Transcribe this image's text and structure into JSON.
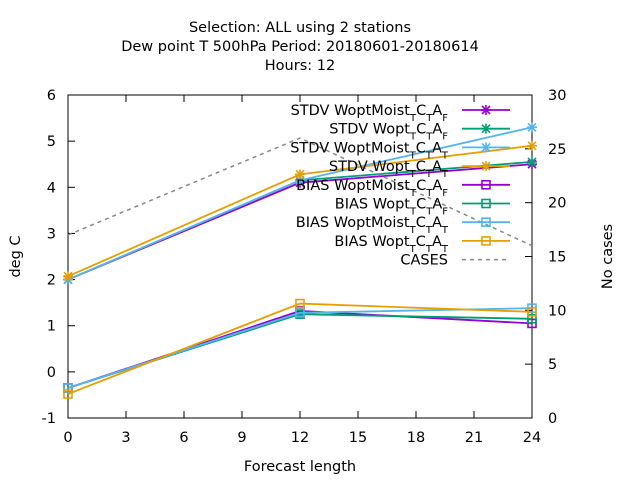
{
  "chart_data": {
    "type": "line",
    "title_lines": [
      "Selection: ALL using     2 stations",
      "Dew point T 500hPa   Period: 20180601-20180614",
      "Hours:  12"
    ],
    "xlabel": "Forecast length",
    "ylabel": "deg C",
    "y2label": "No cases",
    "xlim": [
      0,
      24
    ],
    "ylim": [
      -1,
      6
    ],
    "y2lim": [
      0,
      30
    ],
    "xticks": [
      0,
      3,
      6,
      9,
      12,
      15,
      18,
      21,
      24
    ],
    "yticks": [
      -1,
      0,
      1,
      2,
      3,
      4,
      5,
      6
    ],
    "y2ticks": [
      0,
      5,
      10,
      15,
      20,
      25,
      30
    ],
    "grid": false,
    "legend_position": "top-right",
    "x": [
      0,
      12,
      24
    ],
    "series": [
      {
        "name": "STDV WoptMoist_TSC_TSA_F",
        "legend": {
          "pre": "STDV WoptMoist",
          "parts": [
            [
              "T",
              "S"
            ],
            [
              "C",
              ""
            ],
            [
              "T",
              "S"
            ],
            [
              "A",
              ""
            ],
            [
              "F",
              "S"
            ]
          ]
        },
        "color": "#9400d3",
        "marker": "x-star",
        "axis": "y",
        "values": [
          2.0,
          4.1,
          4.5
        ]
      },
      {
        "name": "STDV Wopt_TSC_TSA_F",
        "legend": {
          "pre": "STDV Wopt",
          "parts": [
            [
              "T",
              "S"
            ],
            [
              "C",
              ""
            ],
            [
              "T",
              "S"
            ],
            [
              "A",
              ""
            ],
            [
              "F",
              "S"
            ]
          ]
        },
        "color": "#009e73",
        "marker": "x-star",
        "axis": "y",
        "values": [
          2.0,
          4.15,
          4.55
        ]
      },
      {
        "name": "STDV WoptMoist_TSC_TSA_T",
        "legend": {
          "pre": "STDV WoptMoist",
          "parts": [
            [
              "T",
              "S"
            ],
            [
              "C",
              ""
            ],
            [
              "T",
              "S"
            ],
            [
              "A",
              ""
            ],
            [
              "T",
              "S"
            ]
          ]
        },
        "color": "#56b4e9",
        "marker": "x-star",
        "axis": "y",
        "values": [
          2.0,
          4.15,
          5.3
        ]
      },
      {
        "name": "STDV Wopt_TSC_TSA_T",
        "legend": {
          "pre": "STDV Wopt",
          "parts": [
            [
              "T",
              "S"
            ],
            [
              "C",
              ""
            ],
            [
              "T",
              "S"
            ],
            [
              "A",
              ""
            ],
            [
              "T",
              "S"
            ]
          ]
        },
        "color": "#e69f00",
        "marker": "x-star",
        "axis": "y",
        "values": [
          2.07,
          4.28,
          4.9
        ]
      },
      {
        "name": "BIAS WoptMoist_TSC_TSA_F",
        "legend": {
          "pre": "BIAS WoptMoist",
          "parts": [
            [
              "T",
              "S"
            ],
            [
              "C",
              ""
            ],
            [
              "T",
              "S"
            ],
            [
              "A",
              ""
            ],
            [
              "F",
              "S"
            ]
          ]
        },
        "color": "#9400d3",
        "marker": "square",
        "axis": "y",
        "values": [
          -0.35,
          1.32,
          1.05
        ]
      },
      {
        "name": "BIAS Wopt_TSC_TSA_F",
        "legend": {
          "pre": "BIAS Wopt",
          "parts": [
            [
              "T",
              "S"
            ],
            [
              "C",
              ""
            ],
            [
              "T",
              "S"
            ],
            [
              "A",
              ""
            ],
            [
              "F",
              "S"
            ]
          ]
        },
        "color": "#009e73",
        "marker": "square",
        "axis": "y",
        "values": [
          -0.35,
          1.25,
          1.15
        ]
      },
      {
        "name": "BIAS WoptMoist_TSC_TSA_T",
        "legend": {
          "pre": "BIAS WoptMoist",
          "parts": [
            [
              "T",
              "S"
            ],
            [
              "C",
              ""
            ],
            [
              "T",
              "S"
            ],
            [
              "A",
              ""
            ],
            [
              "T",
              "S"
            ]
          ]
        },
        "color": "#56b4e9",
        "marker": "square",
        "axis": "y",
        "values": [
          -0.35,
          1.28,
          1.38
        ]
      },
      {
        "name": "BIAS Wopt_TSC_TSA_T",
        "legend": {
          "pre": "BIAS Wopt",
          "parts": [
            [
              "T",
              "S"
            ],
            [
              "C",
              ""
            ],
            [
              "T",
              "S"
            ],
            [
              "A",
              ""
            ],
            [
              "T",
              "S"
            ]
          ]
        },
        "color": "#e69f00",
        "marker": "square",
        "axis": "y",
        "values": [
          -0.48,
          1.48,
          1.3
        ]
      },
      {
        "name": "CASES",
        "legend": {
          "pre": "CASES",
          "parts": []
        },
        "color": "#888888",
        "marker": "none",
        "dashed": true,
        "axis": "y2",
        "values": [
          17,
          26,
          16
        ]
      }
    ]
  }
}
